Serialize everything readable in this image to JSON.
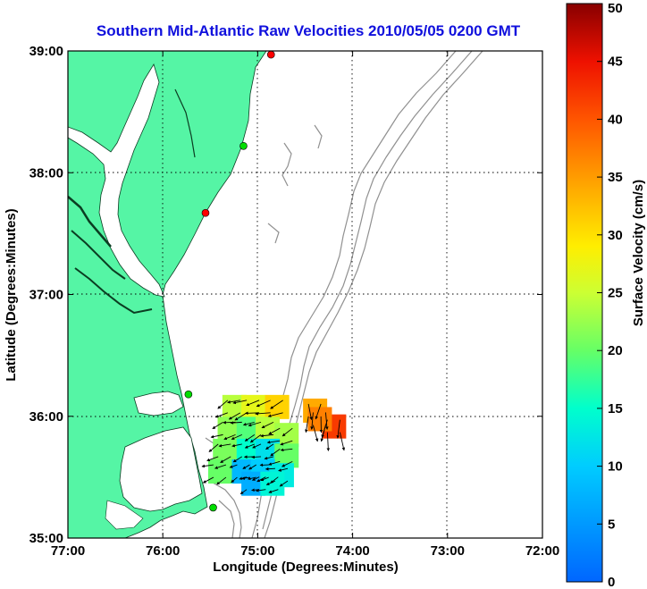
{
  "chart_data": {
    "type": "map",
    "title": "Southern Mid-Atlantic Raw Velocities 2010/05/05 0200 GMT",
    "xlabel": "Longitude (Degrees:Minutes)",
    "ylabel": "Latitude (Degrees:Minutes)",
    "x_ticks": [
      {
        "value": -77,
        "label": "77:00"
      },
      {
        "value": -76,
        "label": "76:00"
      },
      {
        "value": -75,
        "label": "75:00"
      },
      {
        "value": -74,
        "label": "74:00"
      },
      {
        "value": -73,
        "label": "73:00"
      },
      {
        "value": -72,
        "label": "72:00"
      }
    ],
    "y_ticks": [
      {
        "value": 35,
        "label": "35:00"
      },
      {
        "value": 36,
        "label": "36:00"
      },
      {
        "value": 37,
        "label": "37:00"
      },
      {
        "value": 38,
        "label": "38:00"
      },
      {
        "value": 39,
        "label": "39:00"
      }
    ],
    "xlim": [
      -77,
      -72
    ],
    "ylim": [
      35,
      39
    ],
    "grid": true,
    "colorbar": {
      "label": "Surface Velocity (cm/s)",
      "range": [
        0,
        50
      ],
      "ticks": [
        "0",
        "5",
        "10",
        "15",
        "20",
        "25",
        "30",
        "35",
        "40",
        "45",
        "50"
      ]
    },
    "stations": [
      {
        "lon": -74.86,
        "lat": 38.97,
        "color": "#ff0000"
      },
      {
        "lon": -75.15,
        "lat": 38.22,
        "color": "#00dd00"
      },
      {
        "lon": -75.55,
        "lat": 37.67,
        "color": "#ff0000"
      },
      {
        "lon": -75.73,
        "lat": 36.18,
        "color": "#00dd00"
      },
      {
        "lon": -75.47,
        "lat": 35.25,
        "color": "#00dd00"
      }
    ],
    "velocity_cells": [
      {
        "lon": -75.25,
        "lat": 36.08,
        "speed": 24
      },
      {
        "lon": -75.05,
        "lat": 36.08,
        "speed": 27
      },
      {
        "lon": -74.8,
        "lat": 36.08,
        "speed": 31
      },
      {
        "lon": -74.4,
        "lat": 36.05,
        "speed": 34
      },
      {
        "lon": -74.2,
        "lat": 35.92,
        "speed": 42
      },
      {
        "lon": -74.35,
        "lat": 35.98,
        "speed": 37
      },
      {
        "lon": -75.3,
        "lat": 35.9,
        "speed": 22
      },
      {
        "lon": -75.1,
        "lat": 35.9,
        "speed": 19
      },
      {
        "lon": -74.9,
        "lat": 35.9,
        "speed": 24
      },
      {
        "lon": -74.7,
        "lat": 35.85,
        "speed": 23
      },
      {
        "lon": -75.35,
        "lat": 35.72,
        "speed": 21
      },
      {
        "lon": -75.1,
        "lat": 35.72,
        "speed": 15
      },
      {
        "lon": -74.9,
        "lat": 35.72,
        "speed": 12
      },
      {
        "lon": -74.7,
        "lat": 35.68,
        "speed": 20
      },
      {
        "lon": -75.4,
        "lat": 35.55,
        "speed": 20
      },
      {
        "lon": -75.15,
        "lat": 35.55,
        "speed": 8
      },
      {
        "lon": -74.95,
        "lat": 35.55,
        "speed": 10
      },
      {
        "lon": -74.75,
        "lat": 35.52,
        "speed": 13
      },
      {
        "lon": -75.05,
        "lat": 35.45,
        "speed": 7
      },
      {
        "lon": -74.85,
        "lat": 35.45,
        "speed": 14
      }
    ]
  }
}
